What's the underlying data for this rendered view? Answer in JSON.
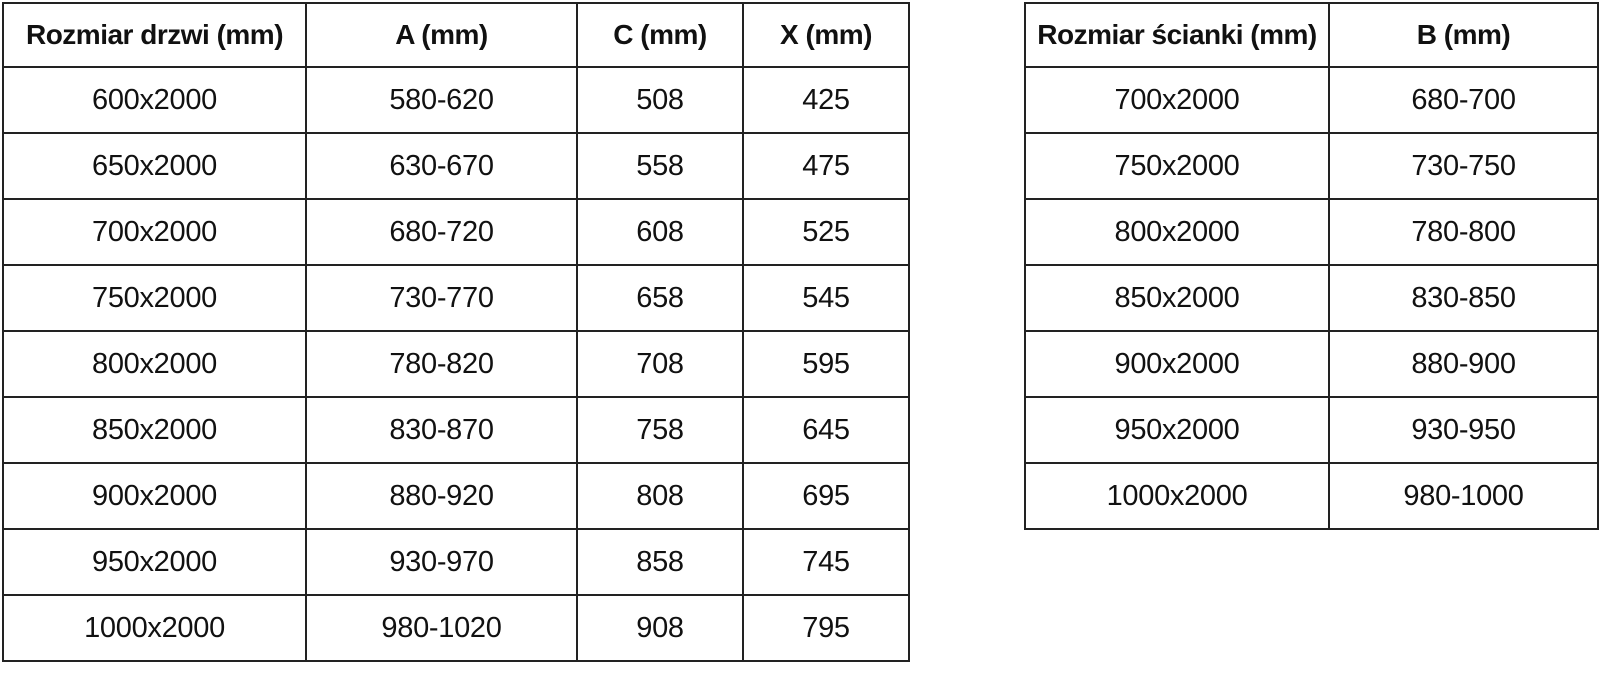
{
  "page": {
    "background": "#ffffff",
    "text_color": "#111111",
    "border_color": "#222222"
  },
  "door_table": {
    "name": "door-size-table",
    "headers": [
      "Rozmiar drzwi (mm)",
      "A (mm)",
      "C (mm)",
      "X (mm)"
    ],
    "rows": [
      [
        "600x2000",
        "580-620",
        "508",
        "425"
      ],
      [
        "650x2000",
        "630-670",
        "558",
        "475"
      ],
      [
        "700x2000",
        "680-720",
        "608",
        "525"
      ],
      [
        "750x2000",
        "730-770",
        "658",
        "545"
      ],
      [
        "800x2000",
        "780-820",
        "708",
        "595"
      ],
      [
        "850x2000",
        "830-870",
        "758",
        "645"
      ],
      [
        "900x2000",
        "880-920",
        "808",
        "695"
      ],
      [
        "950x2000",
        "930-970",
        "858",
        "745"
      ],
      [
        "1000x2000",
        "980-1020",
        "908",
        "795"
      ]
    ]
  },
  "wall_table": {
    "name": "wall-size-table",
    "headers": [
      "Rozmiar ścianki (mm)",
      "B (mm)"
    ],
    "rows": [
      [
        "700x2000",
        "680-700"
      ],
      [
        "750x2000",
        "730-750"
      ],
      [
        "800x2000",
        "780-800"
      ],
      [
        "850x2000",
        "830-850"
      ],
      [
        "900x2000",
        "880-900"
      ],
      [
        "950x2000",
        "930-950"
      ],
      [
        "1000x2000",
        "980-1000"
      ]
    ]
  }
}
